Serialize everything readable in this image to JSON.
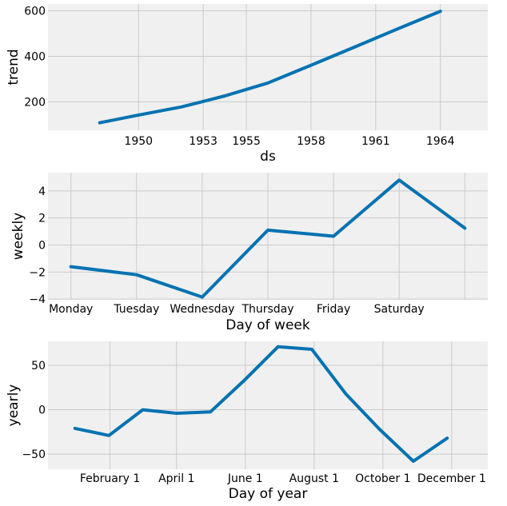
{
  "chart_data": [
    {
      "type": "line",
      "title": "",
      "xlabel": "ds",
      "ylabel": "trend",
      "x_ticks": [
        {
          "pos": 1950,
          "label": "1950"
        },
        {
          "pos": 1953,
          "label": "1953"
        },
        {
          "pos": 1955,
          "label": "1955"
        },
        {
          "pos": 1958,
          "label": "1958"
        },
        {
          "pos": 1961,
          "label": "1961"
        },
        {
          "pos": 1964,
          "label": "1964"
        }
      ],
      "y_ticks": [
        {
          "pos": 200,
          "label": "200"
        },
        {
          "pos": 400,
          "label": "400"
        },
        {
          "pos": 600,
          "label": "600"
        }
      ],
      "xlim": [
        1945.8,
        1966.2
      ],
      "ylim": [
        75,
        630
      ],
      "grid": true,
      "series": [
        {
          "name": "trend",
          "x": [
            1948.2,
            1950,
            1952,
            1954,
            1956,
            1958,
            1960,
            1962,
            1964
          ],
          "y": [
            108,
            142,
            178,
            226,
            283,
            361,
            440,
            520,
            598
          ]
        }
      ],
      "color": "#0072b2"
    },
    {
      "type": "line",
      "title": "",
      "xlabel": "Day of week",
      "ylabel": "weekly",
      "x_ticks": [
        {
          "pos": 0,
          "label": "Monday"
        },
        {
          "pos": 1,
          "label": "Tuesday"
        },
        {
          "pos": 2,
          "label": "Wednesday"
        },
        {
          "pos": 3,
          "label": "Thursday"
        },
        {
          "pos": 4,
          "label": "Friday"
        },
        {
          "pos": 5,
          "label": "Saturday"
        },
        {
          "pos": 6,
          "label": ""
        }
      ],
      "y_ticks": [
        {
          "pos": -4,
          "label": "−4"
        },
        {
          "pos": -2,
          "label": "−2"
        },
        {
          "pos": 0,
          "label": "0"
        },
        {
          "pos": 2,
          "label": "2"
        },
        {
          "pos": 4,
          "label": "4"
        }
      ],
      "xlim": [
        -0.35,
        6.35
      ],
      "ylim": [
        -4.05,
        5.35
      ],
      "grid": true,
      "series": [
        {
          "name": "weekly",
          "x": [
            0,
            1,
            2,
            3,
            4,
            5,
            6
          ],
          "y": [
            -1.6,
            -2.2,
            -3.85,
            1.1,
            0.65,
            4.8,
            1.25
          ]
        }
      ],
      "color": "#0072b2"
    },
    {
      "type": "line",
      "title": "",
      "xlabel": "Day of year",
      "ylabel": "yearly",
      "x_ticks": [
        {
          "pos": 31,
          "label": "February 1"
        },
        {
          "pos": 90,
          "label": "April 1"
        },
        {
          "pos": 151,
          "label": "June 1"
        },
        {
          "pos": 212,
          "label": "August 1"
        },
        {
          "pos": 273,
          "label": "October 1"
        },
        {
          "pos": 334,
          "label": "December 1"
        }
      ],
      "y_ticks": [
        {
          "pos": -50,
          "label": "−50"
        },
        {
          "pos": 0,
          "label": "0"
        },
        {
          "pos": 50,
          "label": "50"
        }
      ],
      "xlim": [
        -24,
        366
      ],
      "ylim": [
        -67,
        77
      ],
      "grid": true,
      "series": [
        {
          "name": "yearly",
          "x": [
            0,
            30,
            60,
            90,
            120,
            150,
            180,
            210,
            240,
            270,
            300,
            330
          ],
          "y": [
            -21,
            -29,
            0,
            -4,
            -2.5,
            33,
            71,
            68,
            18,
            -22,
            -58,
            -32
          ]
        }
      ],
      "color": "#0072b2"
    }
  ]
}
